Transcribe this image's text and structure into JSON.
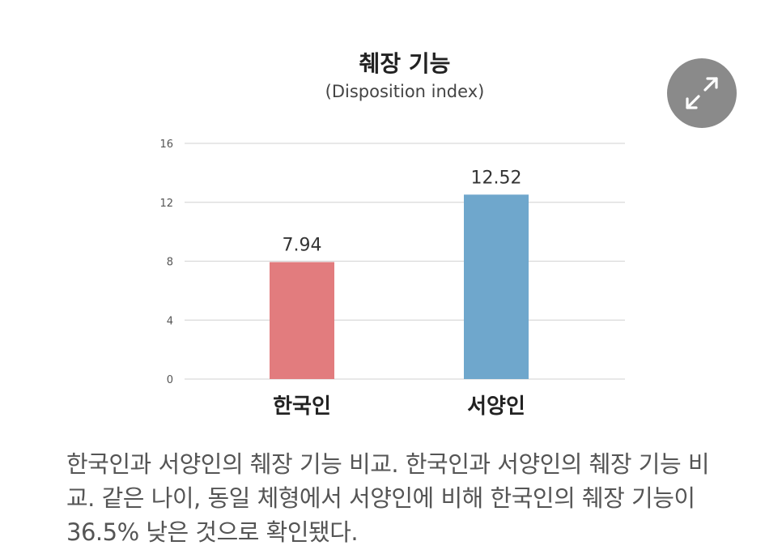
{
  "chart_data": {
    "type": "bar",
    "title": "췌장 기능",
    "subtitle": "(Disposition index)",
    "categories": [
      "한국인",
      "서양인"
    ],
    "values": [
      7.94,
      12.52
    ],
    "value_labels": [
      "7.94",
      "12.52"
    ],
    "colors": [
      "#e27c7e",
      "#6fa7cc"
    ],
    "yticks": [
      "16",
      "12",
      "8",
      "4",
      "0"
    ],
    "ylim": [
      0,
      16
    ],
    "grid": true,
    "legend": "none"
  },
  "expand_icon": "expand-arrows-icon",
  "caption": "한국인과 서양인의 췌장 기능 비교. 한국인과 서양인의 췌장 기능 비교. 같은 나이, 동일 체형에서 서양인에 비해 한국인의 췌장 기능이 36.5% 낮은 것으로 확인됐다."
}
